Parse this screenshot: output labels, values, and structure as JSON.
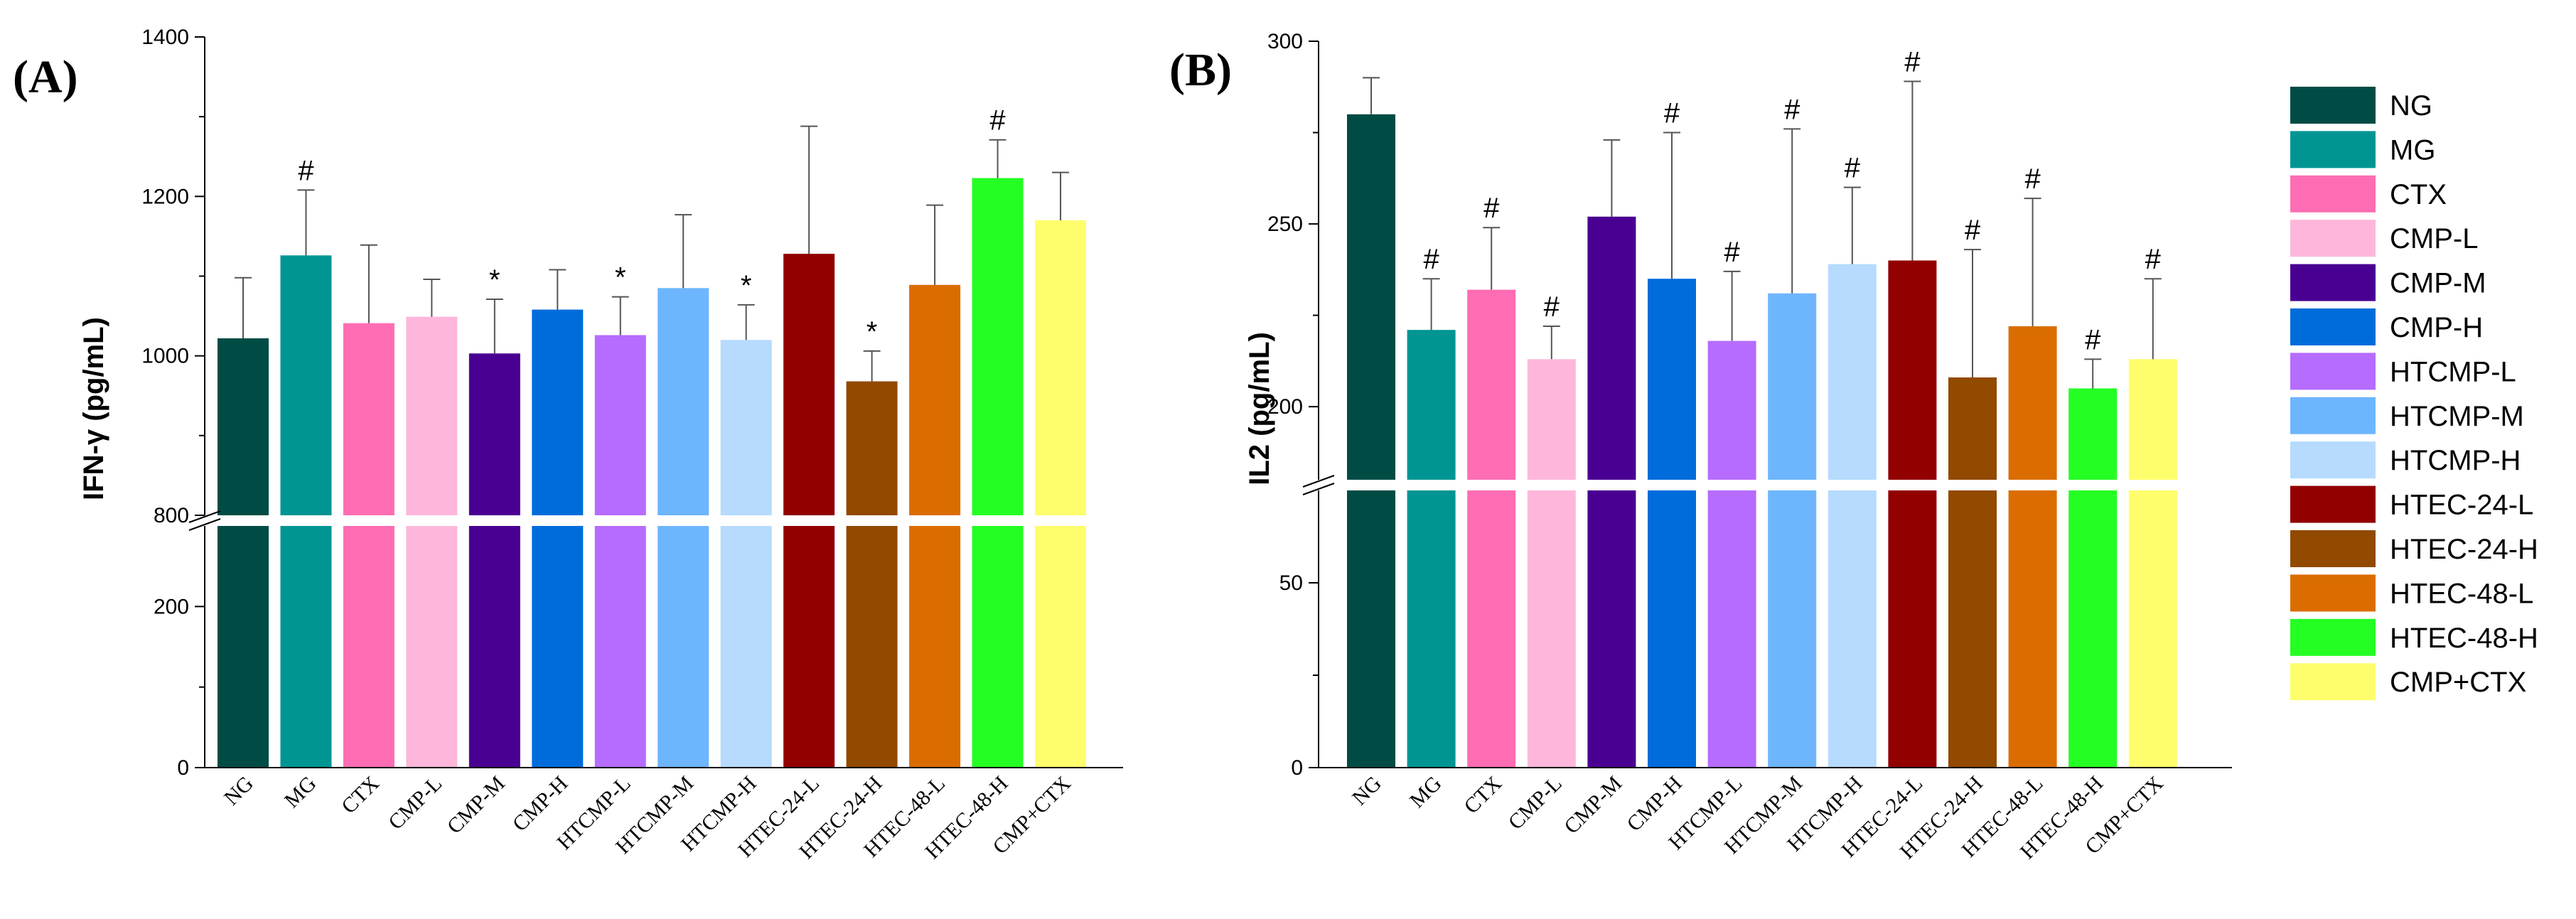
{
  "chart_data": [
    {
      "type": "bar",
      "panel_label": "(A)",
      "ylabel": "IFN-γ (pg/mL)",
      "categories": [
        "NG",
        "MG",
        "CTX",
        "CMP-L",
        "CMP-M",
        "CMP-H",
        "HTCMP-L",
        "HTCMP-M",
        "HTCMP-H",
        "HTEC-24-L",
        "HTEC-24-H",
        "HTEC-48-L",
        "HTEC-48-H",
        "CMP+CTX"
      ],
      "values": [
        1022,
        1126,
        1041,
        1049,
        1003,
        1058,
        1026,
        1085,
        1020,
        1128,
        968,
        1089,
        1223,
        1170
      ],
      "errors": [
        76,
        82,
        98,
        47,
        68,
        50,
        48,
        92,
        44,
        160,
        38,
        100,
        48,
        60
      ],
      "significance": [
        "",
        "#",
        "",
        "",
        "*",
        "",
        "*",
        "",
        "*",
        "",
        "*",
        "",
        "#",
        ""
      ],
      "axis_break": {
        "lower_range": [
          0,
          300
        ],
        "upper_range": [
          800,
          1400
        ]
      },
      "lower_ticks": [
        "0",
        "200"
      ],
      "lower_tick_values": [
        0,
        200
      ],
      "upper_ticks": [
        "800",
        "1000",
        "1200",
        "1400"
      ],
      "upper_tick_values": [
        800,
        1000,
        1200,
        1400
      ]
    },
    {
      "type": "bar",
      "panel_label": "(B)",
      "ylabel": "IL2 (pg/mL)",
      "categories": [
        "NG",
        "MG",
        "CTX",
        "CMP-L",
        "CMP-M",
        "CMP-H",
        "HTCMP-L",
        "HTCMP-M",
        "HTCMP-H",
        "HTEC-24-L",
        "HTEC-24-H",
        "HTEC-48-L",
        "HTEC-48-H",
        "CMP+CTX"
      ],
      "values": [
        280,
        221,
        232,
        213,
        252,
        235,
        218,
        231,
        239,
        240,
        208,
        222,
        205,
        213
      ],
      "errors": [
        10,
        14,
        17,
        9,
        21,
        40,
        19,
        45,
        21,
        49,
        35,
        35,
        8,
        22
      ],
      "significance": [
        "",
        "#",
        "#",
        "#",
        "",
        "#",
        "#",
        "#",
        "#",
        "#",
        "#",
        "#",
        "#",
        "#"
      ],
      "axis_break": {
        "lower_range": [
          0,
          75
        ],
        "upper_range": [
          180,
          300
        ]
      },
      "lower_ticks": [
        "0",
        "50"
      ],
      "lower_tick_values": [
        0,
        50
      ],
      "upper_ticks": [
        "200",
        "250",
        "300"
      ],
      "upper_tick_values": [
        200,
        250,
        300
      ]
    }
  ],
  "legend": {
    "items": [
      {
        "label": "NG",
        "color": "#004C45"
      },
      {
        "label": "MG",
        "color": "#009593"
      },
      {
        "label": "CTX",
        "color": "#FE6DB4"
      },
      {
        "label": "CMP-L",
        "color": "#FEB7DA"
      },
      {
        "label": "CMP-M",
        "color": "#490092"
      },
      {
        "label": "CMP-H",
        "color": "#006CDB"
      },
      {
        "label": "HTCMP-L",
        "color": "#B66CFE"
      },
      {
        "label": "HTCMP-M",
        "color": "#6DB6FE"
      },
      {
        "label": "HTCMP-H",
        "color": "#B6DBFE"
      },
      {
        "label": "HTEC-24-L",
        "color": "#920000"
      },
      {
        "label": "HTEC-24-H",
        "color": "#924900"
      },
      {
        "label": "HTEC-48-L",
        "color": "#DB6D00"
      },
      {
        "label": "HTEC-48-H",
        "color": "#24FE23"
      },
      {
        "label": "CMP+CTX",
        "color": "#FEFE6D"
      }
    ]
  }
}
